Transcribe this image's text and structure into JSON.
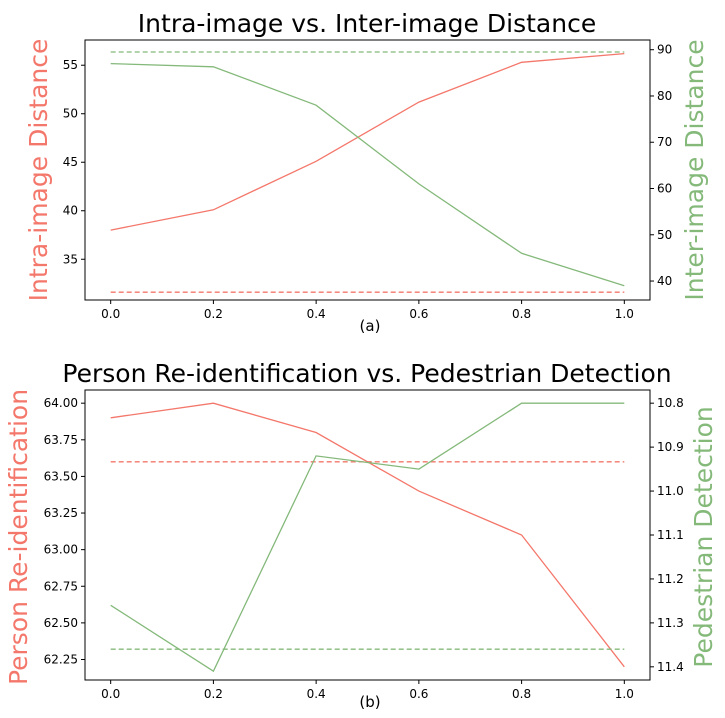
{
  "colors": {
    "left": "#f4776b",
    "right": "#84b97a"
  },
  "chart_data": [
    {
      "type": "line",
      "title": "Intra-image vs. Inter-image Distance",
      "caption": "(a)",
      "x": [
        0.0,
        0.2,
        0.4,
        0.6,
        0.8,
        1.0
      ],
      "xlim": [
        -0.05,
        1.05
      ],
      "xticks": [
        0.0,
        0.2,
        0.4,
        0.6,
        0.8,
        1.0
      ],
      "xtick_labels": [
        "0.0",
        "0.2",
        "0.4",
        "0.6",
        "0.8",
        "1.0"
      ],
      "left_axis": {
        "label": "Intra-image Distance",
        "lim": [
          30.8,
          57.6
        ],
        "ticks": [
          35,
          40,
          45,
          50,
          55
        ],
        "tick_labels": [
          "35",
          "40",
          "45",
          "50",
          "55"
        ],
        "inverted": false
      },
      "right_axis": {
        "label": "Inter-image Distance",
        "lim": [
          35.9,
          92.1
        ],
        "ticks": [
          40,
          50,
          60,
          70,
          80,
          90
        ],
        "tick_labels": [
          "40",
          "50",
          "60",
          "70",
          "80",
          "90"
        ],
        "inverted": false
      },
      "series": [
        {
          "axis": "left",
          "style": "solid",
          "values": [
            38.0,
            40.1,
            45.1,
            51.2,
            55.3,
            56.2
          ]
        },
        {
          "axis": "left",
          "style": "dashed",
          "values": [
            31.6,
            31.6,
            31.6,
            31.6,
            31.6,
            31.6
          ]
        },
        {
          "axis": "right",
          "style": "solid",
          "values": [
            87.0,
            86.3,
            78.0,
            61.0,
            46.0,
            39.0
          ]
        },
        {
          "axis": "right",
          "style": "dashed",
          "values": [
            89.5,
            89.5,
            89.5,
            89.5,
            89.5,
            89.5
          ]
        }
      ]
    },
    {
      "type": "line",
      "title": "Person Re-identification vs. Pedestrian Detection",
      "caption": "(b)",
      "x": [
        0.0,
        0.2,
        0.4,
        0.6,
        0.8,
        1.0
      ],
      "xlim": [
        -0.05,
        1.05
      ],
      "xticks": [
        0.0,
        0.2,
        0.4,
        0.6,
        0.8,
        1.0
      ],
      "xtick_labels": [
        "0.0",
        "0.2",
        "0.4",
        "0.6",
        "0.8",
        "1.0"
      ],
      "left_axis": {
        "label": "Person Re-identification",
        "lim": [
          62.11,
          64.09
        ],
        "ticks": [
          62.25,
          62.5,
          62.75,
          63.0,
          63.25,
          63.5,
          63.75,
          64.0
        ],
        "tick_labels": [
          "62.25",
          "62.50",
          "62.75",
          "63.00",
          "63.25",
          "63.50",
          "63.75",
          "64.00"
        ],
        "inverted": false
      },
      "right_axis": {
        "label": "Pedestrian Detection",
        "lim": [
          10.77,
          11.43
        ],
        "ticks": [
          10.8,
          10.9,
          11.0,
          11.1,
          11.2,
          11.3,
          11.4
        ],
        "tick_labels": [
          "10.8",
          "10.9",
          "11.0",
          "11.1",
          "11.2",
          "11.3",
          "11.4"
        ],
        "inverted": true
      },
      "series": [
        {
          "axis": "left",
          "style": "solid",
          "values": [
            63.9,
            64.0,
            63.8,
            63.4,
            63.1,
            62.2
          ]
        },
        {
          "axis": "left",
          "style": "dashed",
          "values": [
            63.6,
            63.6,
            63.6,
            63.6,
            63.6,
            63.6
          ]
        },
        {
          "axis": "right",
          "style": "solid",
          "values": [
            11.26,
            11.41,
            10.92,
            10.95,
            10.8,
            10.8
          ]
        },
        {
          "axis": "right",
          "style": "dashed",
          "values": [
            11.36,
            11.36,
            11.36,
            11.36,
            11.36,
            11.36
          ]
        }
      ]
    }
  ]
}
